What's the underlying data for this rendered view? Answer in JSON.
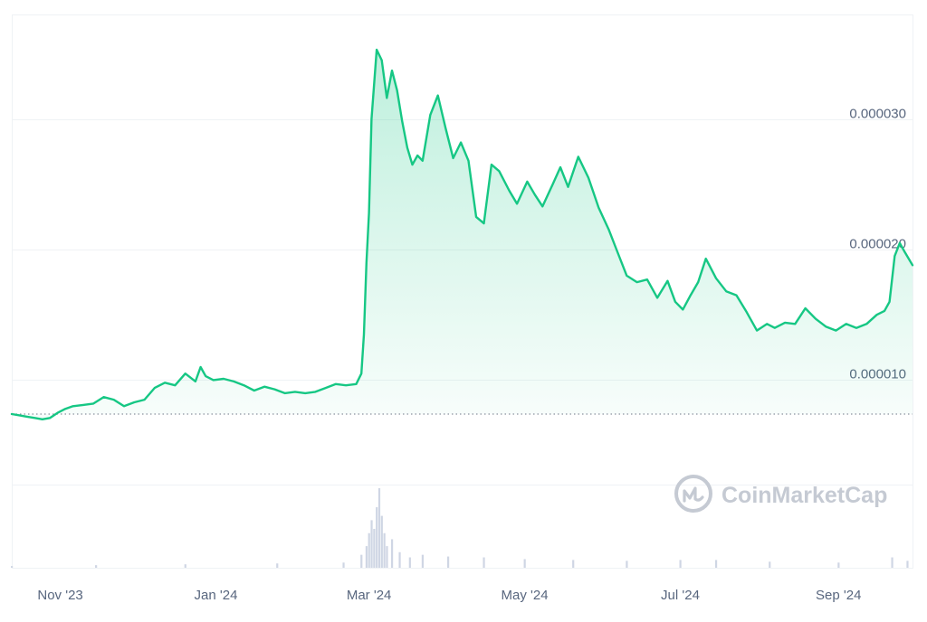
{
  "watermark": {
    "text": "CoinMarketCap",
    "icon": "coinmarketcap-logo-icon"
  },
  "colors": {
    "up": "#16c784",
    "down": "#ea3943",
    "grid": "#eff2f5",
    "axis_text": "#58667e",
    "reference": "#8a939f",
    "volume": "#cfd6e4",
    "watermark": "#c5cad3"
  },
  "chart_data": {
    "type": "area",
    "title": "",
    "xlabel": "",
    "ylabel": "",
    "x_ticks": [
      "Nov '23",
      "Jan '24",
      "Mar '24",
      "May '24",
      "Jul '24",
      "Sep '24"
    ],
    "x_tick_dates": [
      "2023-11-01",
      "2024-01-01",
      "2024-03-01",
      "2024-05-01",
      "2024-07-01",
      "2024-09-01"
    ],
    "y_ticks": [
      1e-05,
      2e-05,
      3e-05
    ],
    "y_tick_labels": [
      "0.000010",
      "0.000020",
      "0.000030"
    ],
    "xlim": [
      "2023-10-13",
      "2024-09-30"
    ],
    "ylim": [
      2e-06,
      3.8e-05
    ],
    "grid": true,
    "baseline": 7.4e-06,
    "series": [
      {
        "x": [
          "2023-10-13",
          "2023-10-16",
          "2023-10-19",
          "2023-10-22",
          "2023-10-25",
          "2023-10-28",
          "2023-10-31",
          "2023-11-03",
          "2023-11-06",
          "2023-11-10",
          "2023-11-14",
          "2023-11-18",
          "2023-11-22",
          "2023-11-26",
          "2023-11-30",
          "2023-12-04",
          "2023-12-08",
          "2023-12-12",
          "2023-12-16",
          "2023-12-20",
          "2023-12-24",
          "2023-12-26",
          "2023-12-28",
          "2023-12-31",
          "2024-01-04",
          "2024-01-08",
          "2024-01-12",
          "2024-01-16",
          "2024-01-20",
          "2024-01-24",
          "2024-01-28",
          "2024-02-01",
          "2024-02-05",
          "2024-02-09",
          "2024-02-13",
          "2024-02-17",
          "2024-02-21",
          "2024-02-25",
          "2024-02-27",
          "2024-02-28",
          "2024-02-29",
          "2024-03-01",
          "2024-03-02",
          "2024-03-04",
          "2024-03-06",
          "2024-03-08",
          "2024-03-10",
          "2024-03-12",
          "2024-03-14",
          "2024-03-16",
          "2024-03-18",
          "2024-03-20",
          "2024-03-22",
          "2024-03-25",
          "2024-03-28",
          "2024-03-31",
          "2024-04-03",
          "2024-04-06",
          "2024-04-09",
          "2024-04-12",
          "2024-04-15",
          "2024-04-18",
          "2024-04-21",
          "2024-04-25",
          "2024-04-28",
          "2024-05-02",
          "2024-05-05",
          "2024-05-08",
          "2024-05-12",
          "2024-05-15",
          "2024-05-18",
          "2024-05-22",
          "2024-05-26",
          "2024-05-30",
          "2024-06-03",
          "2024-06-06",
          "2024-06-10",
          "2024-06-14",
          "2024-06-18",
          "2024-06-22",
          "2024-06-26",
          "2024-06-29",
          "2024-07-02",
          "2024-07-05",
          "2024-07-08",
          "2024-07-11",
          "2024-07-15",
          "2024-07-19",
          "2024-07-23",
          "2024-07-27",
          "2024-07-31",
          "2024-08-04",
          "2024-08-07",
          "2024-08-11",
          "2024-08-15",
          "2024-08-19",
          "2024-08-23",
          "2024-08-27",
          "2024-08-31",
          "2024-09-04",
          "2024-09-08",
          "2024-09-12",
          "2024-09-16",
          "2024-09-19",
          "2024-09-21",
          "2024-09-23",
          "2024-09-25",
          "2024-09-27",
          "2024-09-30"
        ],
        "y": [
          7.4e-06,
          7.3e-06,
          7.2e-06,
          7.1e-06,
          7e-06,
          7.1e-06,
          7.5e-06,
          7.8e-06,
          8e-06,
          8.1e-06,
          8.2e-06,
          8.7e-06,
          8.5e-06,
          8e-06,
          8.3e-06,
          8.5e-06,
          9.4e-06,
          9.8e-06,
          9.6e-06,
          1.05e-05,
          9.9e-06,
          1.1e-05,
          1.03e-05,
          1e-05,
          1.01e-05,
          9.9e-06,
          9.6e-06,
          9.2e-06,
          9.5e-06,
          9.3e-06,
          9e-06,
          9.1e-06,
          9e-06,
          9.1e-06,
          9.4e-06,
          9.7e-06,
          9.6e-06,
          9.7e-06,
          1.05e-05,
          1.35e-05,
          1.9e-05,
          2.28e-05,
          3e-05,
          3.53e-05,
          3.45e-05,
          3.16e-05,
          3.37e-05,
          3.22e-05,
          2.98e-05,
          2.78e-05,
          2.65e-05,
          2.72e-05,
          2.68e-05,
          3.03e-05,
          3.18e-05,
          2.93e-05,
          2.7e-05,
          2.82e-05,
          2.68e-05,
          2.25e-05,
          2.2e-05,
          2.65e-05,
          2.6e-05,
          2.45e-05,
          2.35e-05,
          2.52e-05,
          2.42e-05,
          2.33e-05,
          2.5e-05,
          2.63e-05,
          2.48e-05,
          2.71e-05,
          2.55e-05,
          2.32e-05,
          2.15e-05,
          2e-05,
          1.8e-05,
          1.75e-05,
          1.77e-05,
          1.63e-05,
          1.76e-05,
          1.6e-05,
          1.54e-05,
          1.65e-05,
          1.75e-05,
          1.93e-05,
          1.78e-05,
          1.68e-05,
          1.65e-05,
          1.52e-05,
          1.38e-05,
          1.43e-05,
          1.4e-05,
          1.44e-05,
          1.43e-05,
          1.55e-05,
          1.47e-05,
          1.41e-05,
          1.38e-05,
          1.43e-05,
          1.4e-05,
          1.43e-05,
          1.5e-05,
          1.53e-05,
          1.6e-05,
          1.95e-05,
          2.05e-05,
          1.98e-05,
          1.88e-05
        ]
      }
    ],
    "volume": {
      "x": [
        "2023-10-13",
        "2023-11-15",
        "2023-12-20",
        "2024-01-25",
        "2024-02-20",
        "2024-02-27",
        "2024-02-29",
        "2024-03-01",
        "2024-03-02",
        "2024-03-03",
        "2024-03-04",
        "2024-03-05",
        "2024-03-06",
        "2024-03-07",
        "2024-03-08",
        "2024-03-10",
        "2024-03-13",
        "2024-03-17",
        "2024-03-22",
        "2024-04-01",
        "2024-04-15",
        "2024-05-01",
        "2024-05-20",
        "2024-06-10",
        "2024-07-01",
        "2024-07-15",
        "2024-08-05",
        "2024-09-01",
        "2024-09-22",
        "2024-09-28"
      ],
      "values": [
        0.2,
        0.3,
        0.4,
        0.5,
        0.6,
        1.5,
        2.5,
        4,
        5.5,
        4.5,
        7,
        9.2,
        6,
        4,
        2.5,
        3.3,
        1.8,
        1.2,
        1.5,
        1.3,
        1.2,
        1.0,
        0.9,
        0.8,
        0.9,
        0.9,
        0.7,
        0.6,
        1.2,
        0.8
      ]
    }
  }
}
